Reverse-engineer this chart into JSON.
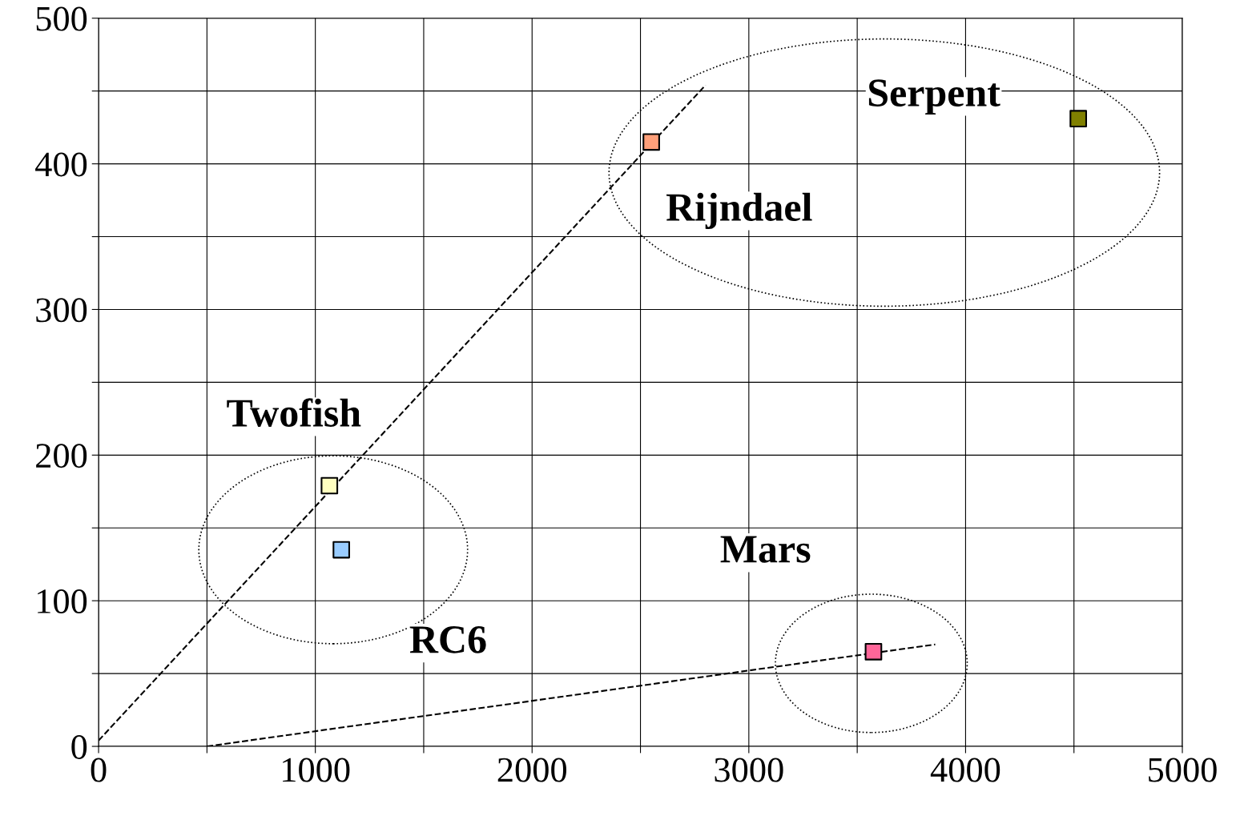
{
  "chart_data": {
    "type": "scatter",
    "xlim": [
      0,
      5000
    ],
    "ylim": [
      0,
      500
    ],
    "xticks": [
      0,
      {
        "value": 500,
        "label": null
      },
      1000,
      {
        "value": 1500,
        "label": null
      },
      2000,
      {
        "value": 2500,
        "label": null
      },
      3000,
      {
        "value": 3500,
        "label": null
      },
      4000,
      {
        "value": 4500,
        "label": null
      },
      5000
    ],
    "yticks": [
      0,
      {
        "value": 50,
        "label": null
      },
      100,
      {
        "value": 150,
        "label": null
      },
      200,
      {
        "value": 250,
        "label": null
      },
      300,
      {
        "value": 350,
        "label": null
      },
      400,
      {
        "value": 450,
        "label": null
      },
      500
    ],
    "grid": true,
    "legend": false,
    "marker": "square",
    "series": [
      {
        "name": "Serpent",
        "color": "#808000",
        "x": [
          4520
        ],
        "values": [
          431
        ]
      },
      {
        "name": "Rijndael",
        "color": "#ffa07a",
        "x": [
          2550
        ],
        "values": [
          415
        ]
      },
      {
        "name": "Twofish",
        "color": "#ffffc0",
        "x": [
          1065
        ],
        "values": [
          179
        ]
      },
      {
        "name": "RC6",
        "color": "#99ccff",
        "x": [
          1120
        ],
        "values": [
          135
        ]
      },
      {
        "name": "Mars",
        "color": "#ff6699",
        "x": [
          3575
        ],
        "values": [
          65
        ]
      },
      {
        "type": "line",
        "color": "#000000",
        "line_style": "dashed",
        "marker": "none",
        "x": [
          0,
          2800
        ],
        "values": [
          4,
          454
        ]
      },
      {
        "type": "line",
        "color": "#000000",
        "line_style": "dashed",
        "marker": "none",
        "x": [
          500,
          3860
        ],
        "values": [
          0,
          70
        ]
      }
    ]
  }
}
